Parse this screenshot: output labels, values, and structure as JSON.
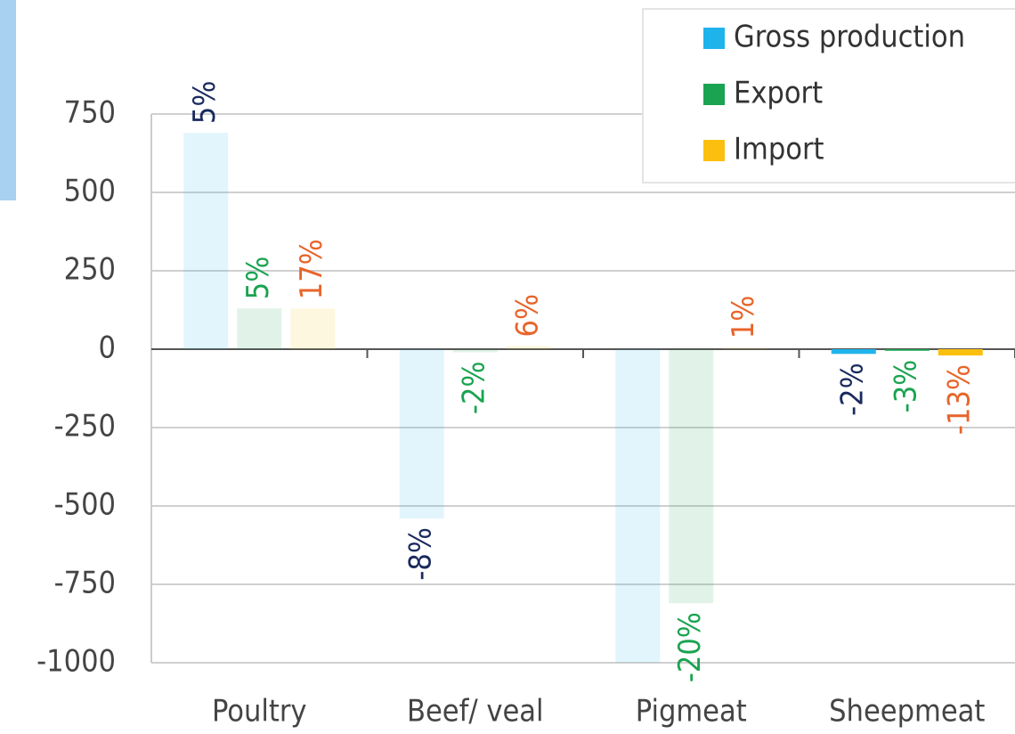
{
  "chart_data": {
    "type": "bar",
    "categories": [
      "Poultry",
      "Beef/ veal",
      "Pigmeat",
      "Sheepmeat"
    ],
    "series": [
      {
        "name": "Gross production",
        "color": "#1fb3ec",
        "label_color": "#1a2a5e",
        "values": [
          690,
          -540,
          -1000,
          -15
        ],
        "value_labels": [
          "5%",
          "-8%",
          "",
          "-2%"
        ]
      },
      {
        "name": "Export",
        "color": "#1aa350",
        "label_color": "#1aa350",
        "values": [
          130,
          -10,
          -810,
          -5
        ],
        "value_labels": [
          "5%",
          "-2%",
          "-20%",
          "-3%"
        ]
      },
      {
        "name": "Import",
        "color": "#fbbf0f",
        "label_color": "#e8642a",
        "values": [
          130,
          10,
          5,
          -20
        ],
        "value_labels": [
          "17%",
          "6%",
          "1%",
          "-13%"
        ]
      }
    ],
    "highlight_category": "Sheepmeat",
    "ylim": [
      -1000,
      750
    ],
    "yticks": [
      -1000,
      -750,
      -500,
      -250,
      0,
      250,
      500,
      750
    ],
    "grid": true,
    "legend": "top-right"
  }
}
